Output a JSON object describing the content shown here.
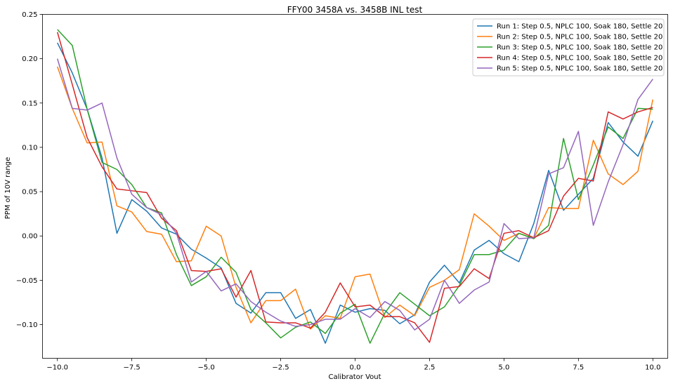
{
  "chart_data": {
    "type": "line",
    "title": "FFY00 3458A vs. 3458B INL test",
    "xlabel": "Calibrator Vout",
    "ylabel": "PPM of 10V range",
    "xlim": [
      -10.5,
      10.5
    ],
    "ylim": [
      -0.138,
      0.25
    ],
    "grid": false,
    "legend_placement": "top-right",
    "x_ticks": [
      -10.0,
      -7.5,
      -5.0,
      -2.5,
      0.0,
      2.5,
      5.0,
      7.5,
      10.0
    ],
    "x_tick_labels": [
      "−10.0",
      "−7.5",
      "−5.0",
      "−2.5",
      "0.0",
      "2.5",
      "5.0",
      "7.5",
      "10.0"
    ],
    "y_ticks": [
      -0.1,
      -0.05,
      0.0,
      0.05,
      0.1,
      0.15,
      0.2,
      0.25
    ],
    "y_tick_labels": [
      "−0.10",
      "−0.05",
      "0.00",
      "0.05",
      "0.10",
      "0.15",
      "0.20",
      "0.25"
    ],
    "x": [
      -10.0,
      -9.5,
      -9.0,
      -8.5,
      -8.0,
      -7.5,
      -7.0,
      -6.5,
      -6.0,
      -5.5,
      -5.0,
      -4.5,
      -4.0,
      -3.5,
      -3.0,
      -2.5,
      -2.0,
      -1.5,
      -1.0,
      -0.5,
      0.0,
      0.5,
      1.0,
      1.5,
      2.0,
      2.5,
      3.0,
      3.5,
      4.0,
      4.5,
      5.0,
      5.5,
      6.0,
      6.5,
      7.0,
      7.5,
      8.0,
      8.5,
      9.0,
      9.5,
      10.0
    ],
    "series": [
      {
        "name": "Run 1: Step 0.5, NPLC 100, Soak 180, Settle 20",
        "color": "#1f77b4",
        "values": [
          0.218,
          0.184,
          0.143,
          0.088,
          0.003,
          0.041,
          0.028,
          0.009,
          0.002,
          -0.015,
          -0.025,
          -0.036,
          -0.076,
          -0.087,
          -0.064,
          -0.064,
          -0.093,
          -0.083,
          -0.121,
          -0.078,
          -0.086,
          -0.082,
          -0.084,
          -0.099,
          -0.089,
          -0.052,
          -0.033,
          -0.053,
          -0.016,
          -0.005,
          -0.02,
          -0.029,
          0.014,
          0.074,
          0.029,
          0.047,
          0.065,
          0.128,
          0.106,
          0.09,
          0.13
        ]
      },
      {
        "name": "Run 2: Step 0.5, NPLC 100, Soak 180, Settle 20",
        "color": "#ff7f0e",
        "values": [
          0.191,
          0.144,
          0.105,
          0.106,
          0.034,
          0.027,
          0.005,
          0.002,
          -0.029,
          -0.028,
          0.011,
          0.0,
          -0.058,
          -0.098,
          -0.073,
          -0.073,
          -0.06,
          -0.105,
          -0.09,
          -0.093,
          -0.046,
          -0.043,
          -0.092,
          -0.078,
          -0.09,
          -0.058,
          -0.05,
          -0.038,
          0.025,
          0.011,
          -0.005,
          0.003,
          -0.003,
          0.032,
          0.031,
          0.031,
          0.108,
          0.07,
          0.058,
          0.073,
          0.154
        ]
      },
      {
        "name": "Run 3: Step 0.5, NPLC 100, Soak 180, Settle 20",
        "color": "#2ca02c",
        "values": [
          0.233,
          0.215,
          0.143,
          0.083,
          0.075,
          0.058,
          0.032,
          0.026,
          -0.021,
          -0.056,
          -0.046,
          -0.024,
          -0.041,
          -0.083,
          -0.098,
          -0.115,
          -0.103,
          -0.097,
          -0.11,
          -0.087,
          -0.077,
          -0.121,
          -0.087,
          -0.064,
          -0.077,
          -0.09,
          -0.08,
          -0.056,
          -0.021,
          -0.021,
          -0.016,
          0.003,
          -0.003,
          0.012,
          0.11,
          0.041,
          0.08,
          0.123,
          0.11,
          0.144,
          0.143
        ]
      },
      {
        "name": "Run 4: Step 0.5, NPLC 100, Soak 180, Settle 20",
        "color": "#d62728",
        "values": [
          0.23,
          0.171,
          0.111,
          0.078,
          0.053,
          0.051,
          0.049,
          0.02,
          0.006,
          -0.039,
          -0.04,
          -0.037,
          -0.069,
          -0.039,
          -0.097,
          -0.098,
          -0.098,
          -0.104,
          -0.086,
          -0.053,
          -0.08,
          -0.078,
          -0.091,
          -0.091,
          -0.098,
          -0.12,
          -0.059,
          -0.057,
          -0.037,
          -0.048,
          0.003,
          0.006,
          -0.002,
          0.006,
          0.045,
          0.065,
          0.062,
          0.14,
          0.132,
          0.14,
          0.145
        ]
      },
      {
        "name": "Run 5: Step 0.5, NPLC 100, Soak 180, Settle 20",
        "color": "#9467bd",
        "values": [
          0.2,
          0.144,
          0.142,
          0.15,
          0.088,
          0.047,
          0.032,
          0.024,
          0.003,
          -0.052,
          -0.04,
          -0.062,
          -0.054,
          -0.074,
          -0.086,
          -0.096,
          -0.102,
          -0.1,
          -0.094,
          -0.094,
          -0.082,
          -0.092,
          -0.074,
          -0.084,
          -0.106,
          -0.094,
          -0.05,
          -0.076,
          -0.061,
          -0.052,
          0.014,
          -0.003,
          -0.002,
          0.07,
          0.077,
          0.118,
          0.012,
          0.061,
          0.103,
          0.154,
          0.177
        ]
      }
    ]
  }
}
